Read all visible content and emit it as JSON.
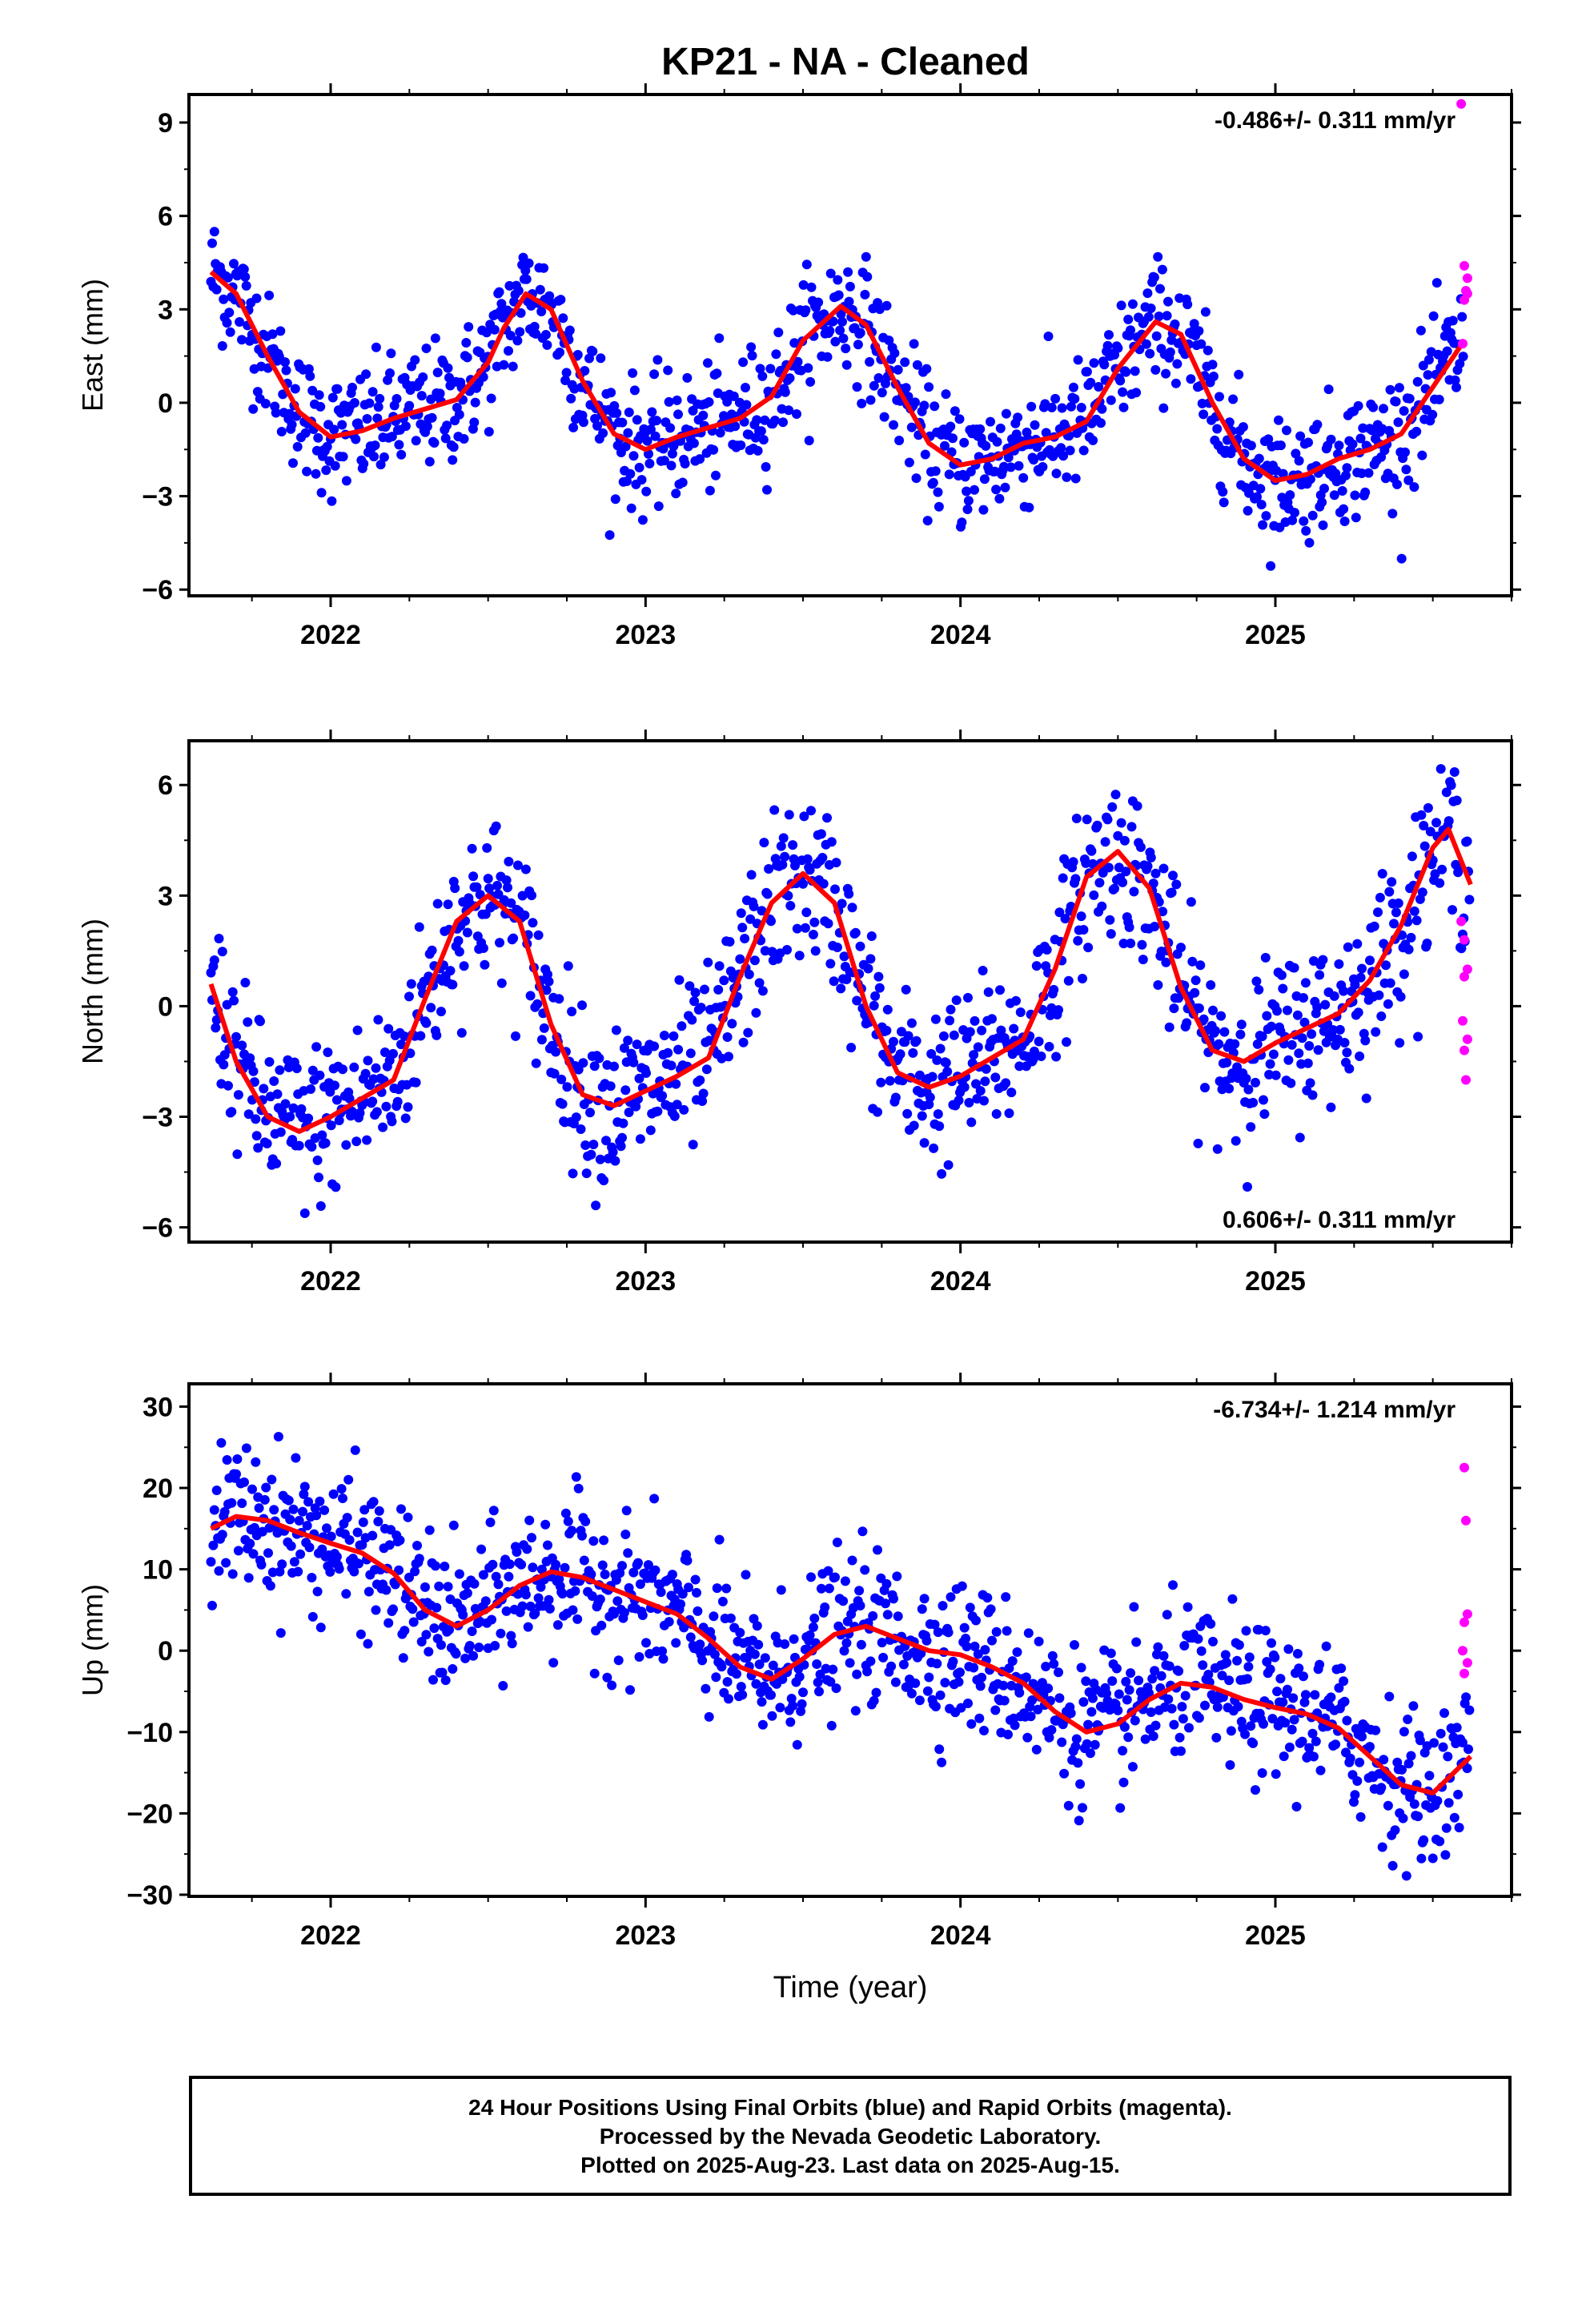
{
  "title": "KP21  - NA - Cleaned",
  "footer": {
    "line1": "24 Hour Positions Using Final Orbits (blue) and Rapid Orbits (magenta).",
    "line2": "Processed by the Nevada Geodetic Laboratory.",
    "line3": "Plotted on 2025-Aug-23. Last data on 2025-Aug-15."
  },
  "colors": {
    "final": "#0000ff",
    "rapid": "#ff00ff",
    "model": "#ff0000",
    "axis": "#000000"
  },
  "chart_data": [
    {
      "type": "scatter",
      "ylabel": "East (mm)",
      "rate_label": "-0.486+/- 0.311 mm/yr",
      "rate_position": "top-right",
      "xlim": [
        2021.55,
        2025.75
      ],
      "ylim": [
        -6.2,
        9.9
      ],
      "yticks": [
        -6,
        -3,
        0,
        3,
        6,
        9
      ],
      "xticks": [
        2022,
        2023,
        2024,
        2025
      ],
      "xtick_labels": [
        "2022",
        "2023",
        "2024",
        "2025"
      ],
      "scatter_model": {
        "amp": 2.1,
        "phase": 2022.62,
        "trend": -0.49,
        "offset": 0.2,
        "noise": 1.0
      },
      "model_curve": {
        "x": [
          2021.62,
          2021.7,
          2021.8,
          2021.9,
          2022.0,
          2022.1,
          2022.2,
          2022.3,
          2022.4,
          2022.5,
          2022.55,
          2022.62,
          2022.7,
          2022.8,
          2022.9,
          2023.0,
          2023.1,
          2023.2,
          2023.3,
          2023.4,
          2023.5,
          2023.62,
          2023.7,
          2023.8,
          2023.9,
          2024.0,
          2024.1,
          2024.2,
          2024.3,
          2024.4,
          2024.5,
          2024.62,
          2024.7,
          2024.8,
          2024.9,
          2025.0,
          2025.1,
          2025.2,
          2025.3,
          2025.4,
          2025.5,
          2025.6
        ],
        "y": [
          4.2,
          3.5,
          1.5,
          -0.3,
          -1.1,
          -0.9,
          -0.5,
          -0.2,
          0.1,
          1.3,
          2.4,
          3.5,
          3.0,
          0.7,
          -1.0,
          -1.5,
          -1.1,
          -0.8,
          -0.5,
          0.2,
          2.0,
          3.1,
          2.5,
          0.5,
          -1.3,
          -2.0,
          -1.8,
          -1.3,
          -1.1,
          -0.6,
          1.1,
          2.6,
          2.2,
          0.0,
          -1.8,
          -2.5,
          -2.3,
          -1.8,
          -1.5,
          -1.0,
          0.5,
          2.0
        ]
      },
      "rapid_points": {
        "x": [
          2025.59,
          2025.6,
          2025.61,
          2025.605,
          2025.6,
          2025.61,
          2025.595
        ],
        "y": [
          9.6,
          4.4,
          4.0,
          3.6,
          3.3,
          3.5,
          1.9
        ]
      }
    },
    {
      "type": "scatter",
      "ylabel": "North (mm)",
      "rate_label": "0.606+/- 0.311 mm/yr",
      "rate_position": "bottom-right",
      "xlim": [
        2021.55,
        2025.75
      ],
      "ylim": [
        -6.4,
        7.2
      ],
      "yticks": [
        -6,
        -3,
        0,
        3,
        6
      ],
      "xticks": [
        2022,
        2023,
        2024,
        2025
      ],
      "xtick_labels": [
        "2022",
        "2023",
        "2024",
        "2025"
      ],
      "scatter_model": {
        "amp": 3.2,
        "phase": 2022.5,
        "trend": 0.6,
        "offset": 0.0,
        "noise": 1.1
      },
      "model_curve": {
        "x": [
          2021.62,
          2021.7,
          2021.8,
          2021.9,
          2022.0,
          2022.1,
          2022.2,
          2022.3,
          2022.4,
          2022.5,
          2022.6,
          2022.7,
          2022.8,
          2022.9,
          2023.0,
          2023.1,
          2023.2,
          2023.3,
          2023.4,
          2023.5,
          2023.6,
          2023.7,
          2023.8,
          2023.9,
          2024.0,
          2024.1,
          2024.2,
          2024.3,
          2024.4,
          2024.5,
          2024.6,
          2024.7,
          2024.8,
          2024.9,
          2025.0,
          2025.1,
          2025.2,
          2025.3,
          2025.4,
          2025.5,
          2025.55,
          2025.62
        ],
        "y": [
          0.6,
          -1.5,
          -3.0,
          -3.4,
          -3.0,
          -2.5,
          -2.0,
          0.2,
          2.3,
          3.0,
          2.3,
          -0.5,
          -2.4,
          -2.7,
          -2.3,
          -1.9,
          -1.4,
          0.8,
          2.8,
          3.6,
          2.8,
          0.0,
          -1.8,
          -2.2,
          -1.9,
          -1.4,
          -0.9,
          1.0,
          3.5,
          4.2,
          3.2,
          0.5,
          -1.2,
          -1.5,
          -1.0,
          -0.6,
          -0.2,
          0.7,
          2.2,
          4.3,
          4.8,
          3.3
        ]
      },
      "rapid_points": {
        "x": [
          2025.59,
          2025.6,
          2025.61,
          2025.6,
          2025.595,
          2025.61,
          2025.6,
          2025.605
        ],
        "y": [
          2.3,
          1.8,
          1.0,
          0.8,
          -0.4,
          -0.9,
          -1.2,
          -2.0
        ]
      }
    },
    {
      "type": "scatter",
      "ylabel": "Up (mm)",
      "rate_label": "-6.734+/- 1.214 mm/yr",
      "rate_position": "top-right",
      "xlim": [
        2021.55,
        2025.75
      ],
      "ylim": [
        -30.2,
        32.8
      ],
      "yticks": [
        -30,
        -20,
        -10,
        0,
        10,
        20,
        30
      ],
      "xticks": [
        2022,
        2023,
        2024,
        2025
      ],
      "xtick_labels": [
        "2022",
        "2023",
        "2024",
        "2025"
      ],
      "xlabel": "Time (year)",
      "scatter_model": {
        "amp": 4.0,
        "phase": 2022.8,
        "trend": -6.7,
        "offset": 0.0,
        "noise": 4.5
      },
      "model_curve": {
        "x": [
          2021.62,
          2021.7,
          2021.8,
          2021.9,
          2022.0,
          2022.1,
          2022.2,
          2022.3,
          2022.4,
          2022.5,
          2022.6,
          2022.7,
          2022.8,
          2022.9,
          2023.0,
          2023.1,
          2023.2,
          2023.3,
          2023.4,
          2023.5,
          2023.6,
          2023.7,
          2023.8,
          2023.9,
          2024.0,
          2024.1,
          2024.2,
          2024.3,
          2024.4,
          2024.5,
          2024.6,
          2024.7,
          2024.8,
          2024.9,
          2025.0,
          2025.1,
          2025.2,
          2025.3,
          2025.4,
          2025.5,
          2025.62
        ],
        "y": [
          15.0,
          16.5,
          16.0,
          14.5,
          13.2,
          12.0,
          9.5,
          5.0,
          3.0,
          5.0,
          8.0,
          9.7,
          9.0,
          7.5,
          6.0,
          4.5,
          1.5,
          -2.0,
          -3.5,
          -1.0,
          2.0,
          3.0,
          1.5,
          0.0,
          -0.5,
          -2.0,
          -4.0,
          -7.5,
          -10.0,
          -9.0,
          -6.0,
          -4.0,
          -4.5,
          -6.0,
          -7.0,
          -7.8,
          -9.5,
          -13.0,
          -16.5,
          -17.5,
          -13.0
        ]
      },
      "rapid_points": {
        "x": [
          2025.6,
          2025.605,
          2025.61,
          2025.6,
          2025.595,
          2025.61,
          2025.6
        ],
        "y": [
          22.5,
          16.0,
          4.5,
          3.5,
          0.0,
          -1.5,
          -2.8
        ]
      }
    }
  ]
}
